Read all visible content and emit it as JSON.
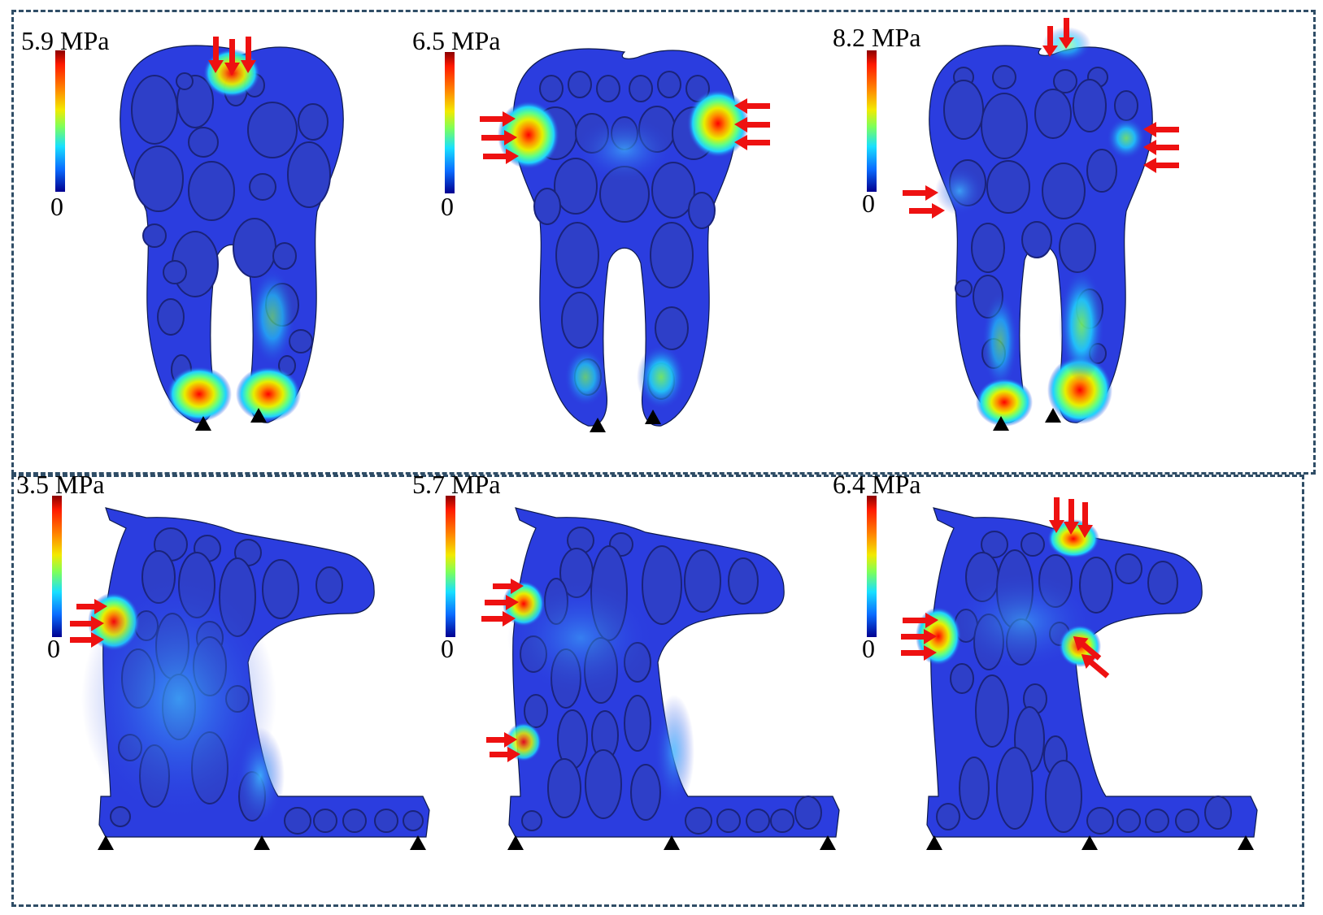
{
  "panels": [
    {
      "id": "tooth-1",
      "max_stress": "5.9 MPa",
      "min_label": "0",
      "shape": "tooth",
      "load": "top"
    },
    {
      "id": "tooth-2",
      "max_stress": "6.5 MPa",
      "min_label": "0",
      "shape": "tooth",
      "load": "sides"
    },
    {
      "id": "tooth-3",
      "max_stress": "8.2 MPa",
      "min_label": "0",
      "shape": "tooth",
      "load": "combined"
    },
    {
      "id": "horse-1",
      "max_stress": "3.5 MPa",
      "min_label": "0",
      "shape": "horse",
      "load": "chest"
    },
    {
      "id": "horse-2",
      "max_stress": "5.7 MPa",
      "min_label": "0",
      "shape": "horse",
      "load": "chest-two-points"
    },
    {
      "id": "horse-3",
      "max_stress": "6.4 MPa",
      "min_label": "0",
      "shape": "horse",
      "load": "combined"
    }
  ],
  "colors": {
    "base": "#2b3ddf",
    "hole": "#2e3fc8",
    "arrow": "#ee1111",
    "frame": "#2f4d66",
    "colormap": [
      "#8b0000",
      "#ff1a00",
      "#ff8a00",
      "#f2ea00",
      "#7dff5a",
      "#18e0ff",
      "#0a6cff",
      "#000090"
    ]
  }
}
